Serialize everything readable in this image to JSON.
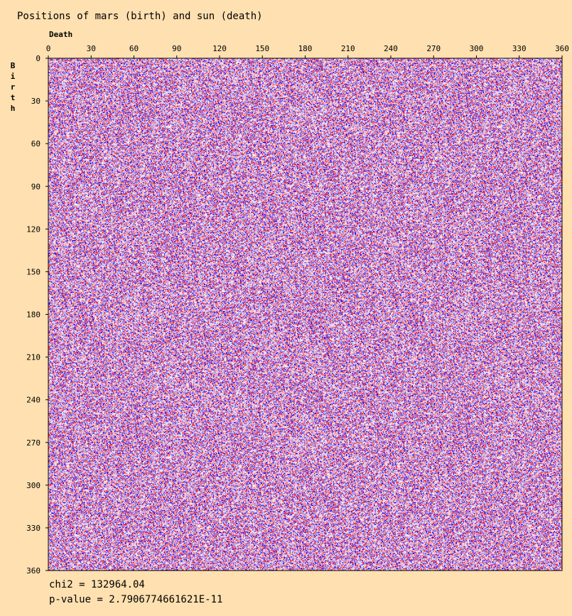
{
  "chart_data": {
    "type": "heatmap",
    "title": "Positions of mars (birth) and sun (death)",
    "x_label": "Death",
    "y_label": "Birth",
    "xlim": [
      0,
      360
    ],
    "xticks": [
      0,
      30,
      60,
      90,
      120,
      150,
      180,
      210,
      240,
      270,
      300,
      330,
      360
    ],
    "ylim": [
      0,
      360
    ],
    "yticks": [
      0,
      30,
      60,
      90,
      120,
      150,
      180,
      210,
      240,
      270,
      300,
      330,
      360
    ],
    "chi2_text": "chi2 = 132964.04",
    "p_value_text": "p-value = 2.7906774661621E-11"
  }
}
